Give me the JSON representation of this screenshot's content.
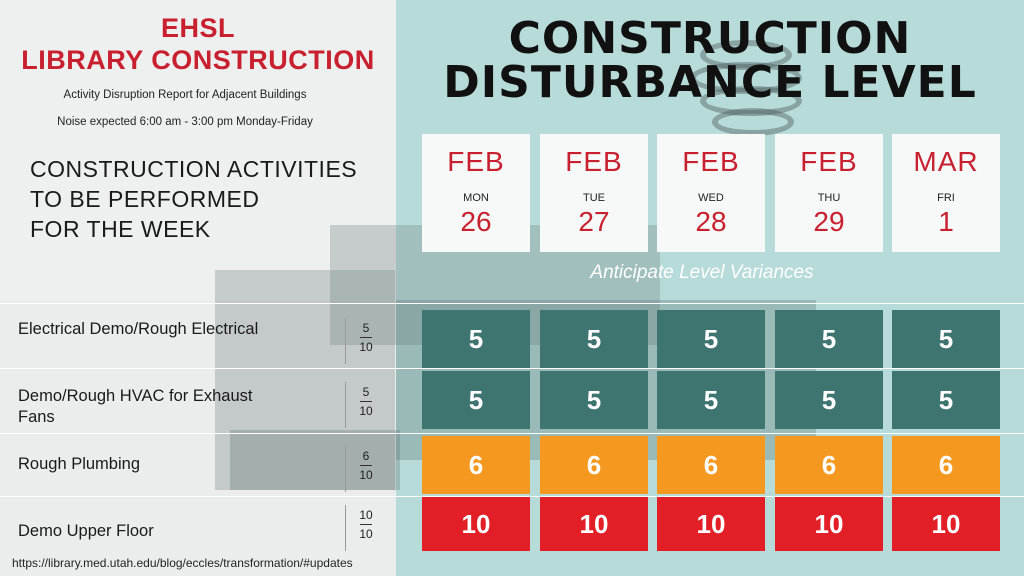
{
  "header": {
    "org_line1": "EHSL",
    "org_line2": "LIBRARY CONSTRUCTION",
    "subtitle": "Activity Disruption Report for Adjacent Buildings",
    "noise_note": "Noise expected 6:00 am - 3:00 pm Monday-Friday",
    "week_heading_lines": [
      "CONSTRUCTION ACTIVITIES",
      "TO BE PERFORMED",
      "FOR THE WEEK"
    ],
    "main_title_lines": [
      "CONSTRUCTION",
      "DISTURBANCE LEVEL"
    ],
    "variance_note": "Anticipate Level Variances"
  },
  "days": [
    {
      "month": "FEB",
      "dow": "MON",
      "day": "26"
    },
    {
      "month": "FEB",
      "dow": "TUE",
      "day": "27"
    },
    {
      "month": "FEB",
      "dow": "WED",
      "day": "28"
    },
    {
      "month": "FEB",
      "dow": "THU",
      "day": "29"
    },
    {
      "month": "MAR",
      "dow": "FRI",
      "day": "1"
    }
  ],
  "activities": [
    {
      "label_lines": [
        "Electrical Demo/Rough Electrical"
      ],
      "score_num": "5",
      "score_den": "10",
      "levels": [
        "5",
        "5",
        "5",
        "5",
        "5"
      ],
      "level_class": "teal"
    },
    {
      "label_lines": [
        "Demo/Rough HVAC for Exhaust",
        "Fans"
      ],
      "score_num": "5",
      "score_den": "10",
      "levels": [
        "5",
        "5",
        "5",
        "5",
        "5"
      ],
      "level_class": "teal"
    },
    {
      "label_lines": [
        "Rough Plumbing"
      ],
      "score_num": "6",
      "score_den": "10",
      "levels": [
        "6",
        "6",
        "6",
        "6",
        "6"
      ],
      "level_class": "orange"
    },
    {
      "label_lines": [
        "Demo Upper Floor"
      ],
      "score_num": "10",
      "score_den": "10",
      "levels": [
        "10",
        "10",
        "10",
        "10",
        "10"
      ],
      "level_class": "red"
    }
  ],
  "colors": {
    "teal": "#3e7570",
    "orange": "#f4981f",
    "red": "#e21e26",
    "accent": "#c8202f"
  },
  "footer": {
    "url": "https://library.med.utah.edu/blog/eccles/transformation/#updates"
  }
}
